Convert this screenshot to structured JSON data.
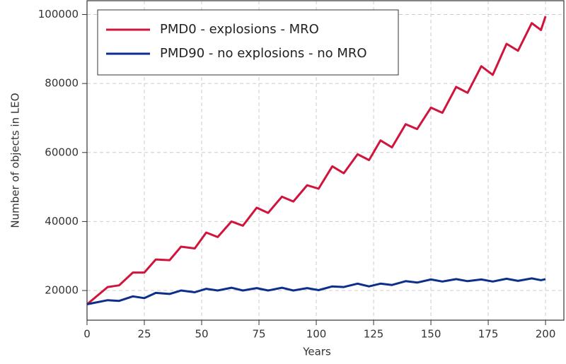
{
  "chart_data": {
    "type": "line",
    "x_label": "Years",
    "y_label": "Number of objects in LEO",
    "x": [
      0,
      9,
      14,
      20,
      25,
      30,
      36,
      41,
      47,
      52,
      57,
      63,
      68,
      74,
      79,
      85,
      90,
      96,
      101,
      107,
      112,
      118,
      123,
      128,
      133,
      139,
      144,
      150,
      155,
      161,
      166,
      172,
      177,
      183,
      188,
      194,
      198,
      200
    ],
    "series": [
      {
        "name": "PMD0 - explosions - MRO",
        "color": "#d0143c",
        "values": [
          16000,
          21000,
          21500,
          25200,
          25200,
          29000,
          28800,
          32700,
          32200,
          36800,
          35500,
          40000,
          38800,
          44000,
          42500,
          47200,
          45800,
          50500,
          49500,
          56000,
          54000,
          59500,
          57800,
          63500,
          61500,
          68200,
          66800,
          73000,
          71500,
          79000,
          77300,
          85000,
          82500,
          91500,
          89500,
          97500,
          95500,
          99500
        ]
      },
      {
        "name": "PMD90 - no explosions - no MRO",
        "color": "#0c2f8c",
        "values": [
          16000,
          17200,
          17000,
          18300,
          17800,
          19300,
          19000,
          20000,
          19500,
          20500,
          20000,
          20800,
          20000,
          20700,
          20000,
          20800,
          20000,
          20700,
          20100,
          21200,
          21000,
          22000,
          21200,
          22000,
          21600,
          22700,
          22300,
          23200,
          22600,
          23300,
          22700,
          23200,
          22600,
          23400,
          22800,
          23500,
          23000,
          23300
        ]
      }
    ],
    "xlim": [
      0,
      208
    ],
    "ylim": [
      11400,
      104000
    ],
    "xticks": [
      0,
      25,
      50,
      75,
      100,
      125,
      150,
      175,
      200
    ],
    "yticks": [
      20000,
      40000,
      60000,
      80000,
      100000
    ],
    "grid": true,
    "legend": "upper left"
  }
}
